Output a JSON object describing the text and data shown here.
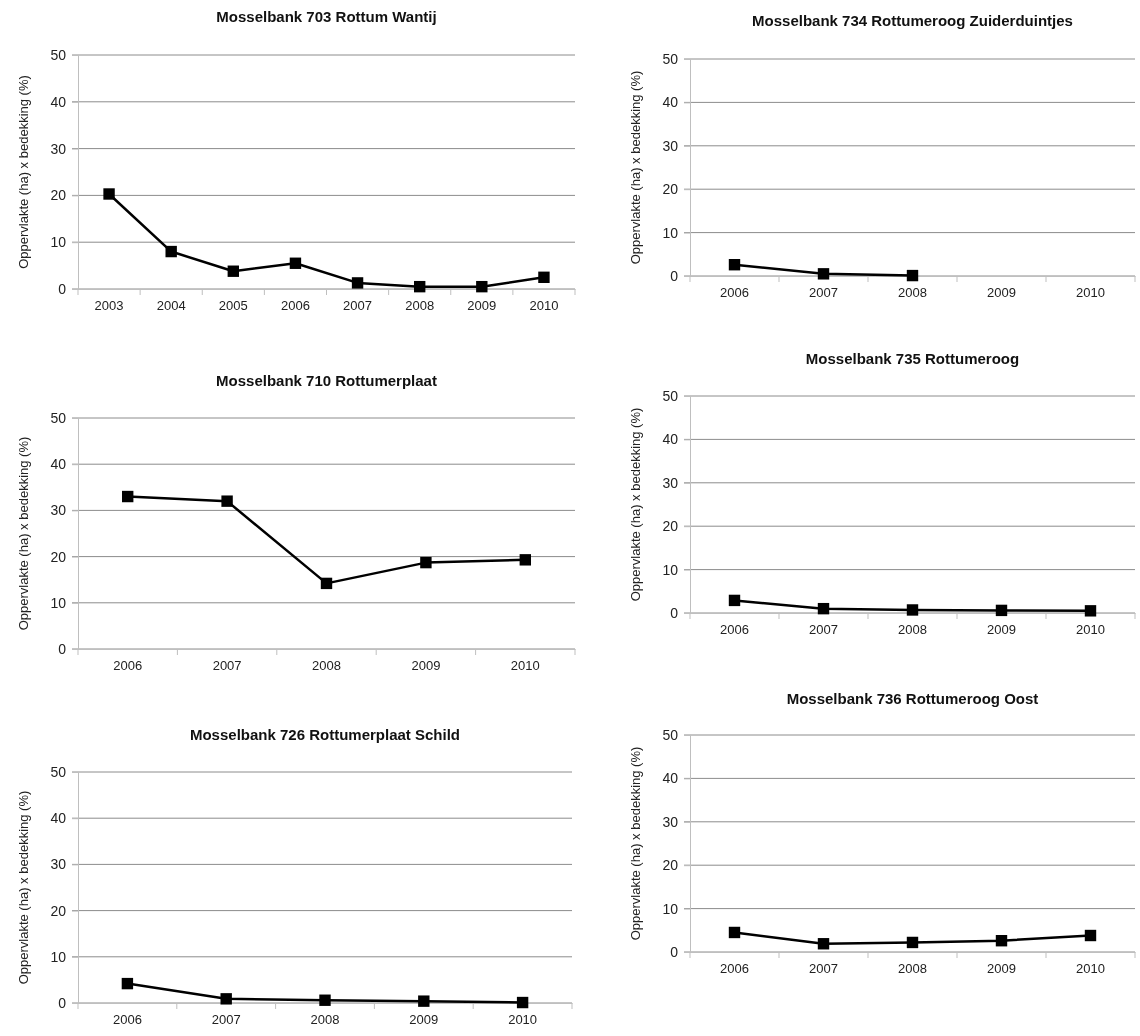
{
  "chart_data": [
    {
      "type": "line",
      "title": "Mosselbank 703 Rottum Wantij",
      "ylabel": "Oppervlakte (ha) x bedekking (%)",
      "categories": [
        "2003",
        "2004",
        "2005",
        "2006",
        "2007",
        "2008",
        "2009",
        "2010"
      ],
      "series": [
        {
          "color": "#000000",
          "values": [
            20.3,
            8,
            3.8,
            5.5,
            1.3,
            0.5,
            0.5,
            2.5
          ]
        }
      ],
      "ylim": [
        0,
        50
      ],
      "yticks": [
        0,
        10,
        20,
        30,
        40,
        50
      ],
      "grid": "y",
      "marker": "square",
      "line_style": "solid"
    },
    {
      "type": "line",
      "title": "Mosselbank 734 Rottumeroog Zuiderduintjes",
      "ylabel": "Oppervlakte (ha) x bedekking (%)",
      "categories": [
        "2006",
        "2007",
        "2008",
        "2009",
        "2010"
      ],
      "series": [
        {
          "color": "#000000",
          "values": [
            2.6,
            0.5,
            0.1,
            null,
            null
          ]
        }
      ],
      "ylim": [
        0,
        50
      ],
      "yticks": [
        0,
        10,
        20,
        30,
        40,
        50
      ],
      "grid": "y",
      "marker": "square",
      "line_style": "solid"
    },
    {
      "type": "line",
      "title": "Mosselbank 710 Rottumerplaat",
      "ylabel": "Oppervlakte (ha) x bedekking (%)",
      "categories": [
        "2006",
        "2007",
        "2008",
        "2009",
        "2010"
      ],
      "series": [
        {
          "color": "#000000",
          "values": [
            33,
            32,
            14.2,
            18.7,
            19.3
          ]
        }
      ],
      "ylim": [
        0,
        50
      ],
      "yticks": [
        0,
        10,
        20,
        30,
        40,
        50
      ],
      "grid": "y",
      "marker": "square",
      "line_style": "solid"
    },
    {
      "type": "line",
      "title": "Mosselbank 735 Rottumeroog",
      "ylabel": "Oppervlakte (ha) x bedekking (%)",
      "categories": [
        "2006",
        "2007",
        "2008",
        "2009",
        "2010"
      ],
      "series": [
        {
          "color": "#000000",
          "values": [
            2.9,
            1,
            0.7,
            0.6,
            0.5
          ]
        }
      ],
      "ylim": [
        0,
        50
      ],
      "yticks": [
        0,
        10,
        20,
        30,
        40,
        50
      ],
      "grid": "y",
      "marker": "square",
      "line_style": "solid"
    },
    {
      "type": "line",
      "title": "Mosselbank 726 Rottumerplaat Schild",
      "ylabel": "Oppervlakte (ha) x bedekking (%)",
      "categories": [
        "2006",
        "2007",
        "2008",
        "2009",
        "2010"
      ],
      "series": [
        {
          "color": "#000000",
          "values": [
            4.2,
            0.9,
            0.6,
            0.4,
            0.1
          ]
        }
      ],
      "ylim": [
        0,
        50
      ],
      "yticks": [
        0,
        10,
        20,
        30,
        40,
        50
      ],
      "grid": "y",
      "marker": "square",
      "line_style": "solid"
    },
    {
      "type": "line",
      "title": "Mosselbank 736 Rottumeroog Oost",
      "ylabel": "Oppervlakte (ha) x bedekking (%)",
      "categories": [
        "2006",
        "2007",
        "2008",
        "2009",
        "2010"
      ],
      "series": [
        {
          "color": "#000000",
          "values": [
            4.5,
            1.9,
            2.2,
            2.6,
            3.8
          ]
        }
      ],
      "ylim": [
        0,
        50
      ],
      "yticks": [
        0,
        10,
        20,
        30,
        40,
        50
      ],
      "grid": "y",
      "marker": "square",
      "line_style": "solid"
    }
  ]
}
